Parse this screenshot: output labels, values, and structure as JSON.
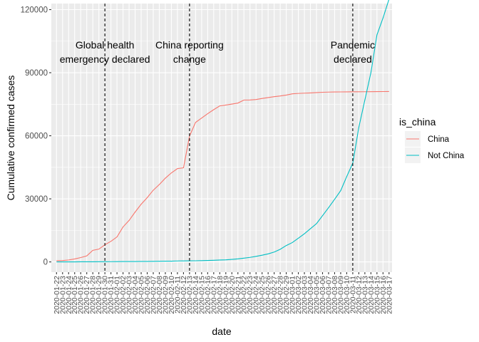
{
  "chart_data": {
    "type": "line",
    "xlabel": "date",
    "ylabel": "Cumulative confirmed cases",
    "ylim": [
      0,
      120000
    ],
    "yticks": [
      0,
      30000,
      60000,
      90000,
      120000
    ],
    "ytick_labels": [
      "0",
      "30000",
      "60000",
      "90000",
      "120000"
    ],
    "grid": true,
    "legend": {
      "title": "is_china",
      "position": "right",
      "entries": [
        {
          "label": "China",
          "color": "#F8766D"
        },
        {
          "label": "Not China",
          "color": "#00BFC4"
        }
      ]
    },
    "x": [
      "2020-01-22",
      "2020-01-23",
      "2020-01-24",
      "2020-01-25",
      "2020-01-26",
      "2020-01-27",
      "2020-01-28",
      "2020-01-29",
      "2020-01-30",
      "2020-01-31",
      "2020-02-01",
      "2020-02-02",
      "2020-02-03",
      "2020-02-04",
      "2020-02-05",
      "2020-02-06",
      "2020-02-07",
      "2020-02-08",
      "2020-02-09",
      "2020-02-10",
      "2020-02-11",
      "2020-02-12",
      "2020-02-13",
      "2020-02-14",
      "2020-02-15",
      "2020-02-16",
      "2020-02-17",
      "2020-02-18",
      "2020-02-19",
      "2020-02-20",
      "2020-02-21",
      "2020-02-22",
      "2020-02-23",
      "2020-02-24",
      "2020-02-25",
      "2020-02-26",
      "2020-02-27",
      "2020-02-28",
      "2020-02-29",
      "2020-03-01",
      "2020-03-02",
      "2020-03-03",
      "2020-03-04",
      "2020-03-05",
      "2020-03-06",
      "2020-03-07",
      "2020-03-08",
      "2020-03-09",
      "2020-03-10",
      "2020-03-11",
      "2020-03-12",
      "2020-03-13",
      "2020-03-14",
      "2020-03-15",
      "2020-03-16",
      "2020-03-17"
    ],
    "series": [
      {
        "name": "China",
        "color": "#F8766D",
        "values": [
          548,
          643,
          920,
          1406,
          2075,
          2877,
          5509,
          6087,
          8141,
          9802,
          11891,
          16630,
          19716,
          23707,
          27440,
          30587,
          34110,
          36814,
          39829,
          42354,
          44386,
          44759,
          59895,
          66358,
          68413,
          70513,
          72434,
          74211,
          74619,
          75077,
          75550,
          77001,
          77022,
          77241,
          77754,
          78166,
          78600,
          78928,
          79356,
          79932,
          80136,
          80261,
          80386,
          80537,
          80690,
          80770,
          80823,
          80860,
          80887,
          80921,
          80932,
          80945,
          80977,
          81003,
          81033,
          81058
        ]
      },
      {
        "name": "Not China",
        "color": "#00BFC4",
        "values": [
          7,
          11,
          21,
          28,
          43,
          50,
          64,
          87,
          105,
          118,
          153,
          173,
          183,
          188,
          212,
          227,
          265,
          317,
          343,
          361,
          457,
          476,
          523,
          538,
          595,
          685,
          780,
          896,
          1000,
          1200,
          1450,
          1800,
          2150,
          2650,
          3180,
          3820,
          4700,
          6000,
          7800,
          9200,
          11300,
          13400,
          15800,
          18200,
          22000,
          25800,
          29800,
          33900,
          40600,
          47000,
          64000,
          77000,
          90000,
          108000,
          116000,
          125000
        ]
      }
    ],
    "annotations": [
      {
        "x": "2020-01-30",
        "label_lines": [
          "Global health",
          "emergency declared"
        ]
      },
      {
        "x": "2020-02-13",
        "label_lines": [
          "China reporting",
          "change"
        ]
      },
      {
        "x": "2020-03-11",
        "label_lines": [
          "Pandemic",
          "declared"
        ]
      }
    ]
  }
}
